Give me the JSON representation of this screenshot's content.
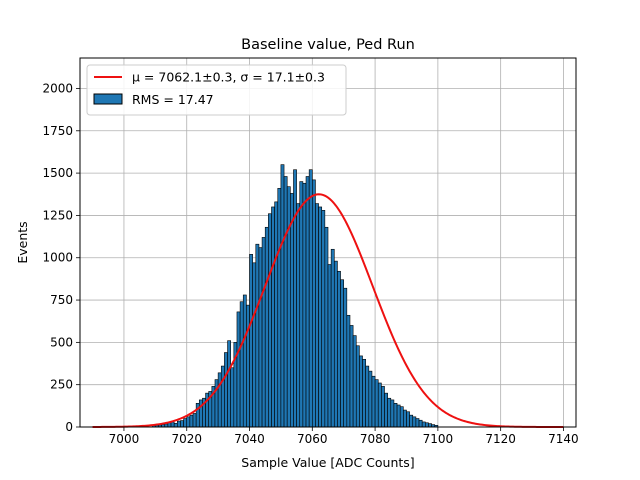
{
  "chart_data": {
    "type": "bar",
    "title": "Baseline value, Ped Run",
    "xlabel": "Sample Value [ADC Counts]",
    "ylabel": "Events",
    "xlim": [
      6986,
      7144
    ],
    "ylim": [
      0,
      2180
    ],
    "xticks": [
      7000,
      7020,
      7040,
      7060,
      7080,
      7100,
      7120,
      7140
    ],
    "yticks": [
      0,
      250,
      500,
      750,
      1000,
      1250,
      1500,
      1750,
      2000
    ],
    "grid": true,
    "legend_position": "top-left",
    "legend": {
      "fit_label": "μ = 7062.1±0.3, σ = 17.1±0.3",
      "hist_label": "RMS = 17.47"
    },
    "histogram": {
      "bin_start": 6990,
      "bin_width": 1,
      "counts": [
        0,
        0,
        0,
        0,
        0,
        0,
        0,
        0,
        0,
        0,
        0,
        0,
        0,
        0,
        0,
        0,
        0,
        0,
        0,
        8,
        10,
        12,
        15,
        18,
        25,
        30,
        22,
        35,
        38,
        50,
        60,
        70,
        80,
        140,
        160,
        170,
        200,
        210,
        240,
        280,
        320,
        360,
        440,
        510,
        350,
        500,
        680,
        740,
        780,
        720,
        1020,
        970,
        1080,
        1060,
        1120,
        1180,
        1260,
        1300,
        1330,
        1410,
        1550,
        1480,
        1420,
        1380,
        1520,
        1320,
        1450,
        1440,
        1480,
        1520,
        1460,
        1320,
        1300,
        1280,
        1180,
        960,
        1050,
        980,
        920,
        870,
        820,
        660,
        600,
        540,
        480,
        420,
        400,
        360,
        330,
        300,
        280,
        260,
        240,
        200,
        170,
        160,
        140,
        130,
        120,
        100,
        90,
        70,
        60,
        50,
        40,
        30,
        25,
        20,
        14,
        10,
        0,
        0,
        0,
        0,
        0,
        0,
        0,
        0,
        0,
        0,
        0,
        0,
        0,
        0,
        0,
        0,
        0,
        0,
        0,
        0,
        0,
        0,
        0,
        0,
        0,
        0,
        0,
        0,
        0,
        0,
        0,
        0,
        0,
        0,
        0,
        0,
        0,
        0,
        0,
        0
      ]
    },
    "series": [
      {
        "type": "gaussian_fit",
        "mu": 7062.1,
        "sigma": 17.1,
        "amplitude": 1375,
        "x_range": [
          6990,
          7140
        ],
        "color": "#ee1111"
      }
    ],
    "colors": {
      "bar_fill": "#1f77b4",
      "bar_edge": "#000000",
      "fit_line": "#ee1111",
      "grid": "#b0b0b0"
    }
  }
}
